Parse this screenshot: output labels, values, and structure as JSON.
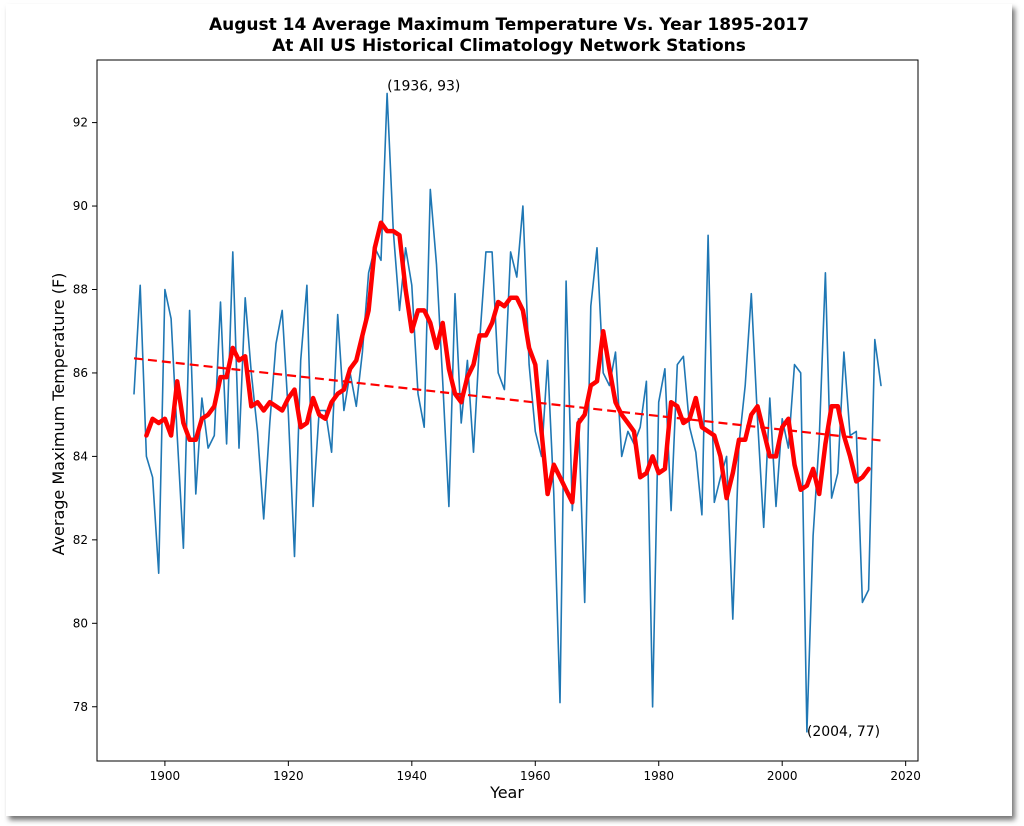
{
  "chart_data": {
    "type": "line",
    "title": "August 14 Average Maximum Temperature Vs. Year 1895-2017",
    "subtitle": "At All US Historical Climatology Network Stations",
    "xlabel": "Year",
    "ylabel": "Average Maximum Temperature (F)",
    "xlim": [
      1889,
      2022
    ],
    "ylim": [
      76.7,
      93.5
    ],
    "xticks": [
      1900,
      1920,
      1940,
      1960,
      1980,
      2000,
      2020
    ],
    "yticks": [
      78,
      80,
      82,
      84,
      86,
      88,
      90,
      92
    ],
    "grid": false,
    "series": [
      {
        "kind": "raw",
        "color": "#1f77b4",
        "x_start": 1895,
        "values": [
          85.5,
          88.1,
          84.0,
          83.5,
          81.2,
          88.0,
          87.3,
          84.5,
          81.8,
          87.5,
          83.1,
          85.4,
          84.2,
          84.5,
          87.7,
          84.3,
          88.9,
          84.2,
          87.8,
          86.0,
          84.6,
          82.5,
          84.8,
          86.7,
          87.5,
          85.0,
          81.6,
          86.3,
          88.1,
          82.8,
          85.1,
          85.1,
          84.1,
          87.4,
          85.1,
          86.0,
          85.2,
          86.5,
          88.4,
          89.0,
          88.7,
          92.7,
          89.4,
          87.5,
          89.0,
          88.1,
          85.5,
          84.7,
          90.4,
          88.6,
          85.8,
          82.8,
          87.9,
          84.8,
          86.3,
          84.1,
          86.8,
          88.9,
          88.9,
          86.0,
          85.6,
          88.9,
          88.3,
          90.0,
          86.2,
          84.6,
          84.0,
          86.3,
          83.1,
          78.1,
          88.2,
          82.7,
          84.9,
          80.5,
          87.6,
          89.0,
          86.0,
          85.7,
          86.5,
          84.0,
          84.6,
          84.3,
          84.7,
          85.8,
          78.0,
          85.3,
          86.1,
          82.7,
          86.2,
          86.4,
          84.7,
          84.1,
          82.6,
          89.3,
          82.9,
          83.5,
          84.0,
          80.1,
          84.3,
          85.7,
          87.9,
          84.9,
          82.3,
          85.4,
          82.8,
          84.9,
          84.2,
          86.2,
          86.0,
          77.4,
          82.1,
          84.4,
          88.4,
          83.0,
          83.6,
          86.5,
          84.5,
          84.6,
          80.5,
          80.8,
          86.8,
          85.7
        ]
      },
      {
        "kind": "moving_average",
        "color": "#ff0000",
        "x_start": 1897,
        "values": [
          84.5,
          84.9,
          84.8,
          84.9,
          84.5,
          85.8,
          84.8,
          84.4,
          84.4,
          84.9,
          85.0,
          85.2,
          85.9,
          85.9,
          86.6,
          86.3,
          86.4,
          85.2,
          85.3,
          85.1,
          85.3,
          85.2,
          85.1,
          85.4,
          85.6,
          84.7,
          84.8,
          85.4,
          85.0,
          84.9,
          85.3,
          85.5,
          85.6,
          86.1,
          86.3,
          86.9,
          87.5,
          89.0,
          89.6,
          89.4,
          89.4,
          89.3,
          88.0,
          87.0,
          87.5,
          87.5,
          87.2,
          86.6,
          87.2,
          86.1,
          85.5,
          85.3,
          85.9,
          86.2,
          86.9,
          86.9,
          87.2,
          87.7,
          87.6,
          87.8,
          87.8,
          87.5,
          86.6,
          86.2,
          84.6,
          83.1,
          83.8,
          83.5,
          83.2,
          82.9,
          84.8,
          85.0,
          85.7,
          85.8,
          87.0,
          86.1,
          85.3,
          85.0,
          84.8,
          84.6,
          83.5,
          83.6,
          84.0,
          83.6,
          83.7,
          85.3,
          85.2,
          84.8,
          84.9,
          85.4,
          84.7,
          84.6,
          84.5,
          84.0,
          83.0,
          83.6,
          84.4,
          84.4,
          85.0,
          85.2,
          84.6,
          84.0,
          84.0,
          84.7,
          84.9,
          83.8,
          83.2,
          83.3,
          83.7,
          83.1,
          84.3,
          85.2,
          85.2,
          84.5,
          84.0,
          83.4,
          83.5,
          83.7
        ]
      },
      {
        "kind": "trend",
        "color": "#ff0000",
        "style": "dashed",
        "x": [
          1895,
          2016
        ],
        "values": [
          86.35,
          84.38
        ]
      }
    ],
    "annotations": [
      {
        "text": "(1936, 93)",
        "x": 1936,
        "y": 92.7
      },
      {
        "text": "(2004, 77)",
        "x": 2004,
        "y": 77.4
      }
    ]
  }
}
